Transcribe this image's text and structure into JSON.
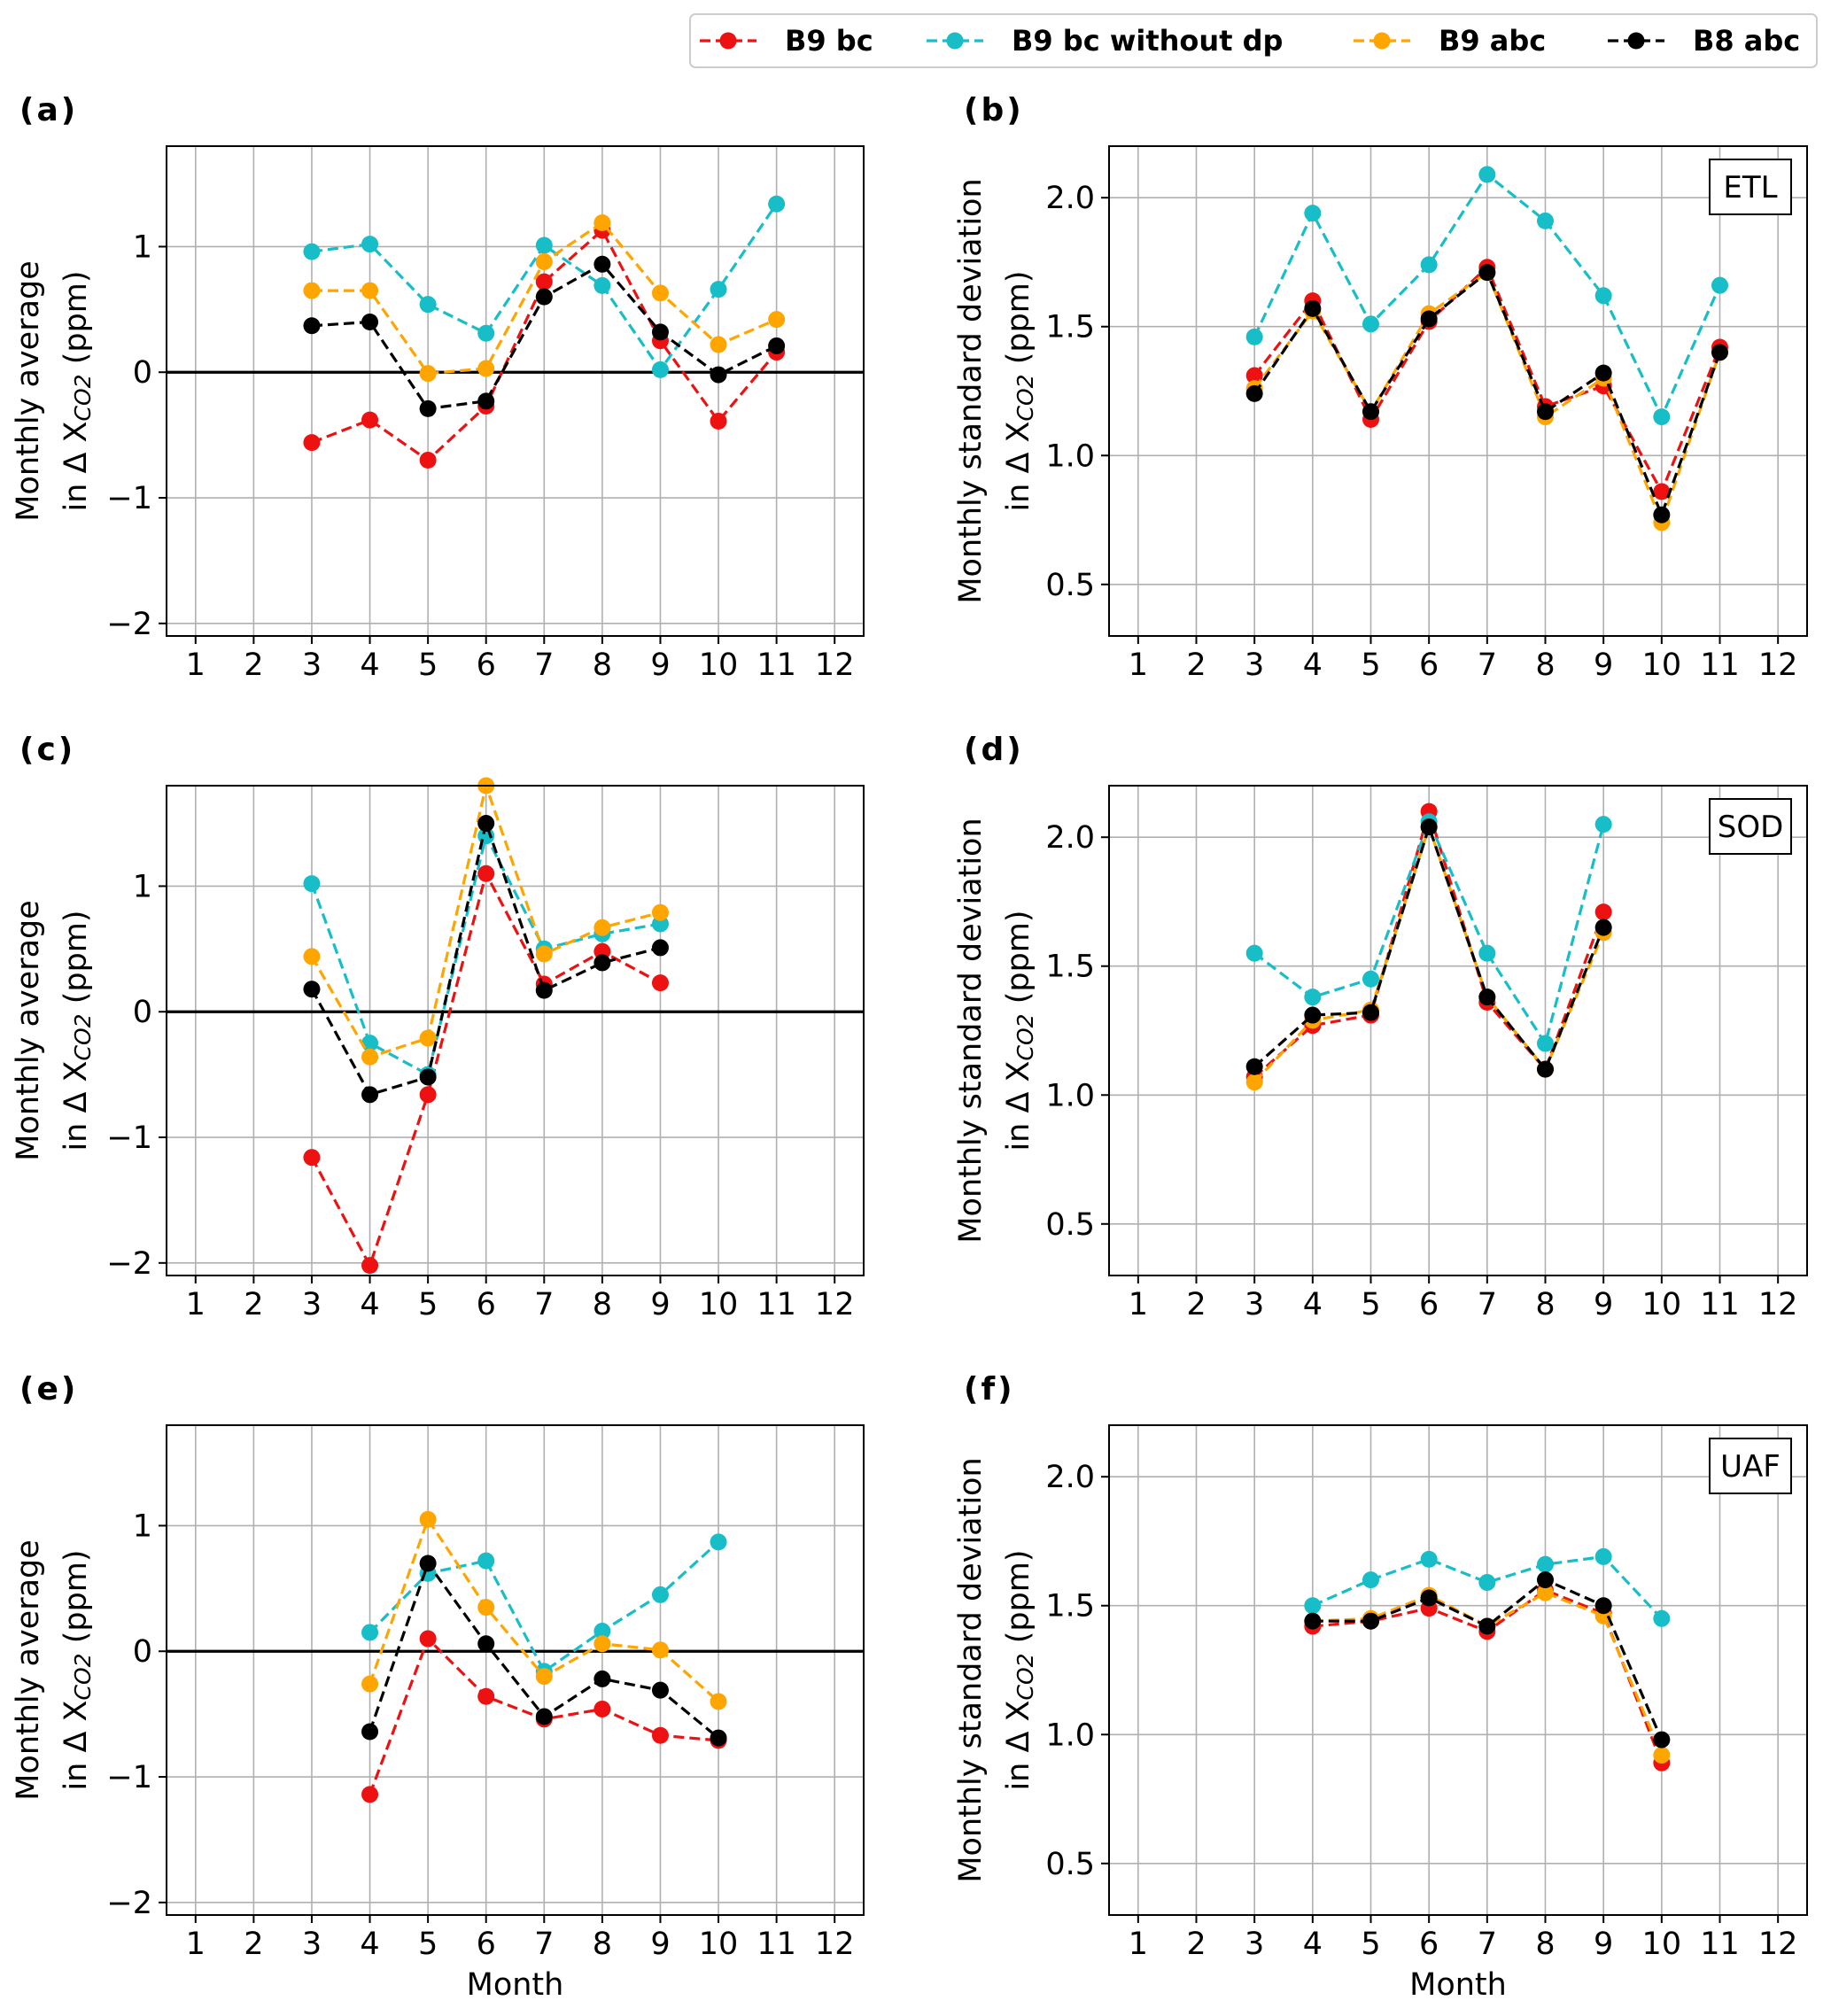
{
  "legend": {
    "items": [
      {
        "label": "B9 bc",
        "series": 0
      },
      {
        "label": "B9 bc without dp",
        "series": 1
      },
      {
        "label": "B9 abc",
        "series": 2
      },
      {
        "label": "B8 abc",
        "series": 3
      }
    ]
  },
  "colors": {
    "series": [
      "#ee1111",
      "#17bec8",
      "#ffa500",
      "#000000"
    ],
    "grid": "#b0b0b0",
    "zero_line": "#000000"
  },
  "chart_data": [
    {
      "type": "line",
      "panel": "(a)",
      "station": "",
      "xlabel": "",
      "ylabel_line1": "Monthly average",
      "ylabel_line2_pre": "in Δ X",
      "ylabel_sub": "CO2",
      "ylabel_line2_post": " (ppm)",
      "ylim": [
        -2.1,
        1.8
      ],
      "yticks": [
        1,
        0,
        -1,
        -2
      ],
      "ytick_labels": [
        "1",
        "0",
        "−1",
        "−2"
      ],
      "zero_line": true,
      "xlim": [
        0.5,
        12.5
      ],
      "xticks": [
        "1",
        "2",
        "3",
        "4",
        "5",
        "6",
        "7",
        "8",
        "9",
        "10",
        "11",
        "12"
      ],
      "grid": true,
      "series": [
        {
          "name": "B9 bc",
          "x": [
            3,
            4,
            5,
            6,
            7,
            8,
            9,
            10,
            11
          ],
          "y": [
            -0.56,
            -0.38,
            -0.7,
            -0.27,
            0.72,
            1.13,
            0.25,
            -0.39,
            0.16
          ]
        },
        {
          "name": "B9 bc without dp",
          "x": [
            3,
            4,
            5,
            6,
            7,
            8,
            9,
            10,
            11
          ],
          "y": [
            0.96,
            1.02,
            0.54,
            0.31,
            1.01,
            0.69,
            0.02,
            0.66,
            1.34
          ]
        },
        {
          "name": "B9 abc",
          "x": [
            3,
            4,
            5,
            6,
            7,
            8,
            9,
            10,
            11
          ],
          "y": [
            0.65,
            0.65,
            -0.01,
            0.03,
            0.88,
            1.19,
            0.63,
            0.22,
            0.42
          ]
        },
        {
          "name": "B8 abc",
          "x": [
            3,
            4,
            5,
            6,
            7,
            8,
            9,
            10,
            11
          ],
          "y": [
            0.37,
            0.4,
            -0.29,
            -0.23,
            0.6,
            0.86,
            0.32,
            -0.02,
            0.21
          ]
        }
      ]
    },
    {
      "type": "line",
      "panel": "(b)",
      "station": "ETL",
      "xlabel": "",
      "ylabel_line1": "Monthly standard deviation",
      "ylabel_line2_pre": "in Δ X",
      "ylabel_sub": "CO2",
      "ylabel_line2_post": " (ppm)",
      "ylim": [
        0.3,
        2.2
      ],
      "yticks": [
        2.0,
        1.5,
        1.0,
        0.5
      ],
      "ytick_labels": [
        "2.0",
        "1.5",
        "1.0",
        "0.5"
      ],
      "zero_line": false,
      "xlim": [
        0.5,
        12.5
      ],
      "xticks": [
        "1",
        "2",
        "3",
        "4",
        "5",
        "6",
        "7",
        "8",
        "9",
        "10",
        "11",
        "12"
      ],
      "grid": true,
      "series": [
        {
          "name": "B9 bc",
          "x": [
            3,
            4,
            5,
            6,
            7,
            8,
            9,
            10,
            11
          ],
          "y": [
            1.31,
            1.6,
            1.14,
            1.52,
            1.73,
            1.19,
            1.27,
            0.86,
            1.42
          ]
        },
        {
          "name": "B9 bc without dp",
          "x": [
            3,
            4,
            5,
            6,
            7,
            8,
            9,
            10,
            11
          ],
          "y": [
            1.46,
            1.94,
            1.51,
            1.74,
            2.09,
            1.91,
            1.62,
            1.15,
            1.66
          ]
        },
        {
          "name": "B9 abc",
          "x": [
            3,
            4,
            5,
            6,
            7,
            8,
            9,
            10,
            11
          ],
          "y": [
            1.26,
            1.56,
            1.17,
            1.55,
            1.71,
            1.15,
            1.3,
            0.74,
            1.4
          ]
        },
        {
          "name": "B8 abc",
          "x": [
            3,
            4,
            5,
            6,
            7,
            8,
            9,
            10,
            11
          ],
          "y": [
            1.24,
            1.57,
            1.17,
            1.53,
            1.71,
            1.17,
            1.32,
            0.77,
            1.4
          ]
        }
      ]
    },
    {
      "type": "line",
      "panel": "(c)",
      "station": "",
      "xlabel": "",
      "ylabel_line1": "Monthly average",
      "ylabel_line2_pre": "in Δ X",
      "ylabel_sub": "CO2",
      "ylabel_line2_post": " (ppm)",
      "ylim": [
        -2.1,
        1.8
      ],
      "yticks": [
        1,
        0,
        -1,
        -2
      ],
      "ytick_labels": [
        "1",
        "0",
        "−1",
        "−2"
      ],
      "zero_line": true,
      "xlim": [
        0.5,
        12.5
      ],
      "xticks": [
        "1",
        "2",
        "3",
        "4",
        "5",
        "6",
        "7",
        "8",
        "9",
        "10",
        "11",
        "12"
      ],
      "grid": true,
      "series": [
        {
          "name": "B9 bc",
          "x": [
            3,
            4,
            5,
            6,
            7,
            8,
            9
          ],
          "y": [
            -1.16,
            -2.02,
            -0.66,
            1.1,
            0.22,
            0.48,
            0.23
          ]
        },
        {
          "name": "B9 bc without dp",
          "x": [
            3,
            4,
            5,
            6,
            7,
            8,
            9
          ],
          "y": [
            1.02,
            -0.25,
            -0.5,
            1.4,
            0.5,
            0.62,
            0.7
          ]
        },
        {
          "name": "B9 abc",
          "x": [
            3,
            4,
            5,
            6,
            7,
            8,
            9
          ],
          "y": [
            0.44,
            -0.36,
            -0.21,
            1.8,
            0.46,
            0.67,
            0.79
          ]
        },
        {
          "name": "B8 abc",
          "x": [
            3,
            4,
            5,
            6,
            7,
            8,
            9
          ],
          "y": [
            0.18,
            -0.66,
            -0.52,
            1.5,
            0.17,
            0.39,
            0.51
          ]
        }
      ]
    },
    {
      "type": "line",
      "panel": "(d)",
      "station": "SOD",
      "xlabel": "",
      "ylabel_line1": "Monthly standard deviation",
      "ylabel_line2_pre": "in Δ X",
      "ylabel_sub": "CO2",
      "ylabel_line2_post": " (ppm)",
      "ylim": [
        0.3,
        2.2
      ],
      "yticks": [
        2.0,
        1.5,
        1.0,
        0.5
      ],
      "ytick_labels": [
        "2.0",
        "1.5",
        "1.0",
        "0.5"
      ],
      "zero_line": false,
      "xlim": [
        0.5,
        12.5
      ],
      "xticks": [
        "1",
        "2",
        "3",
        "4",
        "5",
        "6",
        "7",
        "8",
        "9",
        "10",
        "11",
        "12"
      ],
      "grid": true,
      "series": [
        {
          "name": "B9 bc",
          "x": [
            3,
            4,
            5,
            6,
            7,
            8,
            9
          ],
          "y": [
            1.07,
            1.27,
            1.31,
            2.1,
            1.36,
            1.1,
            1.71
          ]
        },
        {
          "name": "B9 bc without dp",
          "x": [
            3,
            4,
            5,
            6,
            7,
            8,
            9
          ],
          "y": [
            1.55,
            1.38,
            1.45,
            2.06,
            1.55,
            1.2,
            2.05
          ]
        },
        {
          "name": "B9 abc",
          "x": [
            3,
            4,
            5,
            6,
            7,
            8,
            9
          ],
          "y": [
            1.05,
            1.29,
            1.33,
            2.04,
            1.38,
            1.1,
            1.63
          ]
        },
        {
          "name": "B8 abc",
          "x": [
            3,
            4,
            5,
            6,
            7,
            8,
            9
          ],
          "y": [
            1.11,
            1.31,
            1.32,
            2.04,
            1.38,
            1.1,
            1.65
          ]
        }
      ]
    },
    {
      "type": "line",
      "panel": "(e)",
      "station": "",
      "xlabel": "Month",
      "ylabel_line1": "Monthly average",
      "ylabel_line2_pre": "in Δ X",
      "ylabel_sub": "CO2",
      "ylabel_line2_post": " (ppm)",
      "ylim": [
        -2.1,
        1.8
      ],
      "yticks": [
        1,
        0,
        -1,
        -2
      ],
      "ytick_labels": [
        "1",
        "0",
        "−1",
        "−2"
      ],
      "zero_line": true,
      "xlim": [
        0.5,
        12.5
      ],
      "xticks": [
        "1",
        "2",
        "3",
        "4",
        "5",
        "6",
        "7",
        "8",
        "9",
        "10",
        "11",
        "12"
      ],
      "grid": true,
      "series": [
        {
          "name": "B9 bc",
          "x": [
            4,
            5,
            6,
            7,
            8,
            9,
            10
          ],
          "y": [
            -1.14,
            0.1,
            -0.36,
            -0.54,
            -0.46,
            -0.67,
            -0.71
          ]
        },
        {
          "name": "B9 bc without dp",
          "x": [
            4,
            5,
            6,
            7,
            8,
            9,
            10
          ],
          "y": [
            0.15,
            0.62,
            0.72,
            -0.16,
            0.16,
            0.45,
            0.87
          ]
        },
        {
          "name": "B9 abc",
          "x": [
            4,
            5,
            6,
            7,
            8,
            9,
            10
          ],
          "y": [
            -0.26,
            1.05,
            0.35,
            -0.2,
            0.06,
            0.01,
            -0.4
          ]
        },
        {
          "name": "B8 abc",
          "x": [
            4,
            5,
            6,
            7,
            8,
            9,
            10
          ],
          "y": [
            -0.64,
            0.7,
            0.06,
            -0.52,
            -0.22,
            -0.31,
            -0.69
          ]
        }
      ]
    },
    {
      "type": "line",
      "panel": "(f)",
      "station": "UAF",
      "xlabel": "Month",
      "ylabel_line1": "Monthly standard deviation",
      "ylabel_line2_pre": "in Δ X",
      "ylabel_sub": "CO2",
      "ylabel_line2_post": " (ppm)",
      "ylim": [
        0.3,
        2.2
      ],
      "yticks": [
        2.0,
        1.5,
        1.0,
        0.5
      ],
      "ytick_labels": [
        "2.0",
        "1.5",
        "1.0",
        "0.5"
      ],
      "zero_line": false,
      "xlim": [
        0.5,
        12.5
      ],
      "xticks": [
        "1",
        "2",
        "3",
        "4",
        "5",
        "6",
        "7",
        "8",
        "9",
        "10",
        "11",
        "12"
      ],
      "grid": true,
      "series": [
        {
          "name": "B9 bc",
          "x": [
            4,
            5,
            6,
            7,
            8,
            9,
            10
          ],
          "y": [
            1.42,
            1.44,
            1.49,
            1.4,
            1.56,
            1.47,
            0.89
          ]
        },
        {
          "name": "B9 bc without dp",
          "x": [
            4,
            5,
            6,
            7,
            8,
            9,
            10
          ],
          "y": [
            1.5,
            1.6,
            1.68,
            1.59,
            1.66,
            1.69,
            1.45
          ]
        },
        {
          "name": "B9 abc",
          "x": [
            4,
            5,
            6,
            7,
            8,
            9,
            10
          ],
          "y": [
            1.44,
            1.45,
            1.54,
            1.42,
            1.55,
            1.46,
            0.92
          ]
        },
        {
          "name": "B8 abc",
          "x": [
            4,
            5,
            6,
            7,
            8,
            9,
            10
          ],
          "y": [
            1.44,
            1.44,
            1.53,
            1.42,
            1.6,
            1.5,
            0.98
          ]
        }
      ]
    }
  ]
}
